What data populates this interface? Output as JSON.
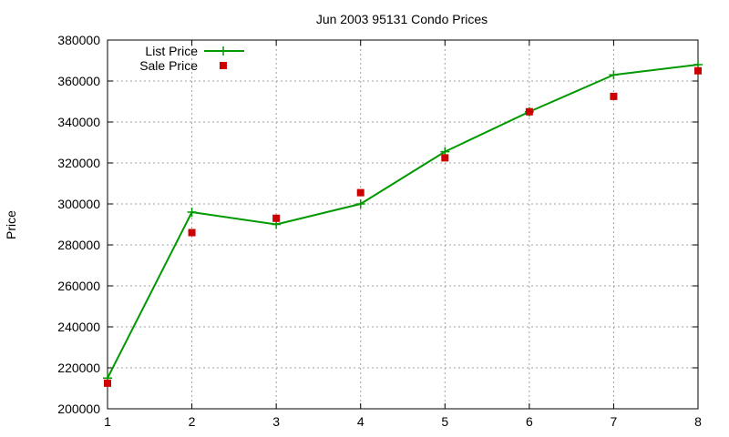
{
  "chart_data": {
    "type": "line",
    "title": "Jun 2003 95131 Condo Prices",
    "xlabel": "",
    "ylabel": "Price",
    "xlim": [
      1,
      8
    ],
    "ylim": [
      200000,
      380000
    ],
    "x_ticks": [
      "1",
      "2",
      "3",
      "4",
      "5",
      "6",
      "7",
      "8"
    ],
    "y_ticks": [
      "200000",
      "220000",
      "240000",
      "260000",
      "280000",
      "300000",
      "320000",
      "340000",
      "360000",
      "380000"
    ],
    "grid": true,
    "legend_position": "top-left",
    "x": [
      1,
      2,
      3,
      4,
      5,
      6,
      7,
      8
    ],
    "series": [
      {
        "name": "List Price",
        "style": "lines+crosses",
        "color": "#009900",
        "values": [
          215000,
          296000,
          290000,
          300000,
          325500,
          345000,
          363000,
          368000
        ]
      },
      {
        "name": "Sale Price",
        "style": "squares",
        "color": "#cc0000",
        "values": [
          212500,
          286000,
          293000,
          305500,
          322500,
          345000,
          352500,
          365000
        ]
      }
    ]
  }
}
